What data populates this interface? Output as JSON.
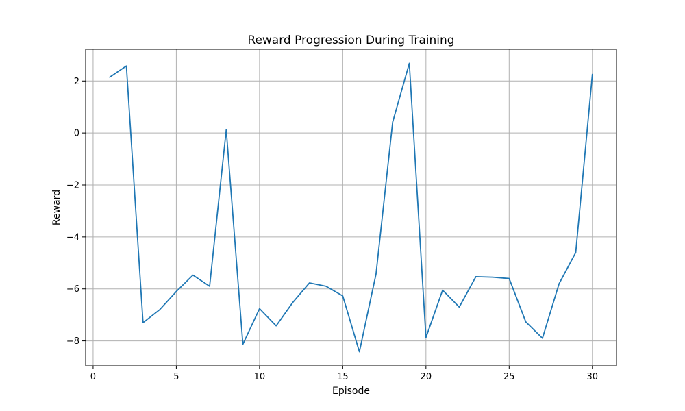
{
  "chart_data": {
    "type": "line",
    "title": "Reward Progression During Training",
    "xlabel": "Episode",
    "ylabel": "Reward",
    "xlim": [
      -0.45,
      31.45
    ],
    "ylim": [
      -8.96,
      3.22
    ],
    "xticks": [
      0,
      5,
      10,
      15,
      20,
      25,
      30
    ],
    "yticks": [
      -8,
      -6,
      -4,
      -2,
      0,
      2
    ],
    "grid": true,
    "series": [
      {
        "color": "#1f77b4",
        "x": [
          1,
          2,
          3,
          4,
          5,
          6,
          7,
          8,
          9,
          10,
          11,
          12,
          13,
          14,
          15,
          16,
          17,
          18,
          19,
          20,
          21,
          22,
          23,
          24,
          25,
          26,
          27,
          28,
          29,
          30
        ],
        "values": [
          2.15,
          2.58,
          -7.3,
          -6.8,
          -6.1,
          -5.47,
          -5.9,
          0.12,
          -8.13,
          -6.76,
          -7.42,
          -6.52,
          -5.77,
          -5.9,
          -6.27,
          -8.42,
          -5.43,
          0.42,
          2.68,
          -7.87,
          -6.05,
          -6.7,
          -5.53,
          -5.55,
          -5.6,
          -7.27,
          -7.9,
          -5.8,
          -4.6,
          2.25
        ]
      }
    ]
  }
}
